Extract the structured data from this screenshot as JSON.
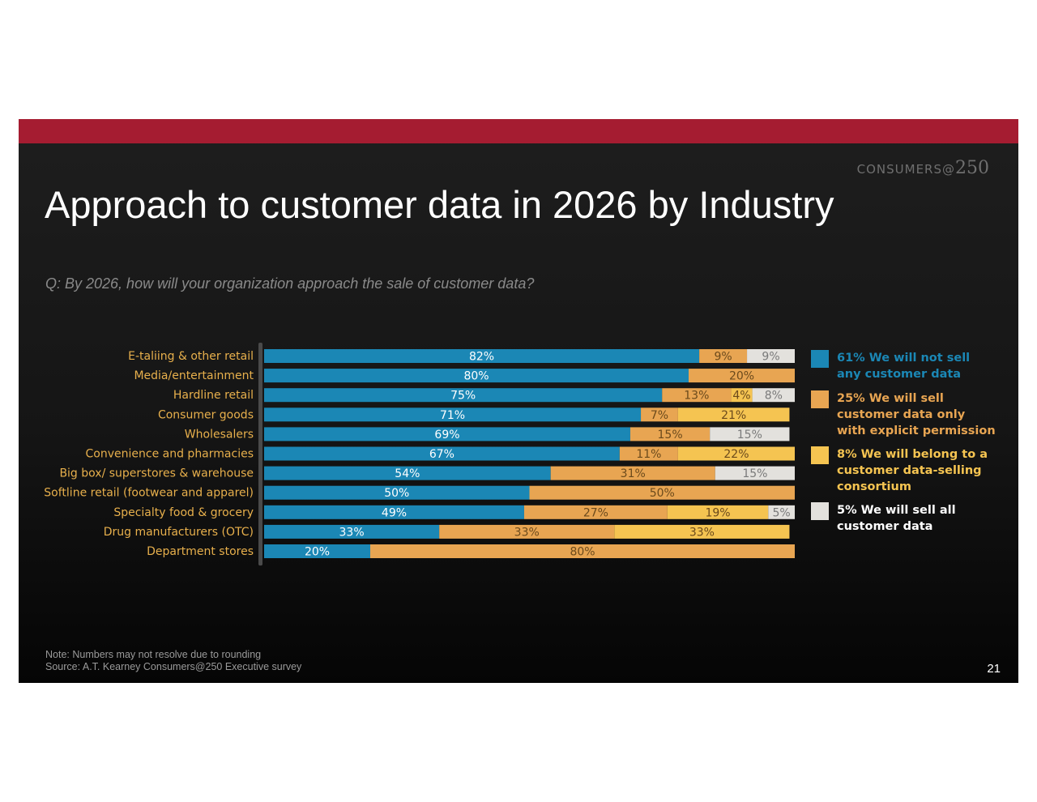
{
  "header": {
    "brand_text": "CONSUMERS@",
    "brand_number": "250"
  },
  "title": "Approach to customer data in 2026 by Industry",
  "question": "Q: By 2026, how will your organization approach the sale of customer data?",
  "colors": {
    "top_bar": "#a51c31",
    "not_sell": "#1b87b5",
    "permission": "#e8a552",
    "consortium": "#f5c451",
    "sell_all": "#e3e1dd",
    "category_label": "#e8b04c"
  },
  "chart_data": {
    "type": "bar",
    "orientation": "horizontal",
    "stacked": true,
    "title": "",
    "xlabel": "",
    "ylabel": "",
    "xlim": [
      0,
      100
    ],
    "categories": [
      "E-taliing & other retail",
      "Media/entertainment",
      "Hardline retail",
      "Consumer goods",
      "Wholesalers",
      "Convenience and pharmacies",
      "Big box/ superstores & warehouse",
      "Softline retail (footwear and apparel)",
      "Specialty food & grocery",
      "Drug manufacturers (OTC)",
      "Department stores"
    ],
    "series": [
      {
        "name": "61% We will not sell any customer data",
        "color": "#1b87b5",
        "label_color": "#ffffff",
        "values": [
          82,
          80,
          75,
          71,
          69,
          67,
          54,
          50,
          49,
          33,
          20
        ]
      },
      {
        "name": "25% We will sell customer data only with explicit permission",
        "color": "#e8a552",
        "label_color": "#6b4a1c",
        "values": [
          9,
          20,
          13,
          7,
          15,
          11,
          31,
          50,
          27,
          33,
          80
        ]
      },
      {
        "name": "8% We will belong to a customer data-selling consortium",
        "color": "#f5c451",
        "label_color": "#6b4a1c",
        "values": [
          0,
          0,
          4,
          21,
          0,
          22,
          0,
          0,
          19,
          33,
          0
        ]
      },
      {
        "name": "5% We will sell all customer data",
        "color": "#e3e1dd",
        "label_color": "#7a7a7a",
        "values": [
          9,
          0,
          8,
          0,
          15,
          0,
          15,
          0,
          5,
          0,
          0
        ]
      }
    ],
    "legend": {
      "position": "right",
      "items": [
        {
          "text": "61% We will not sell\nany customer data",
          "color": "#1b87b5"
        },
        {
          "text": "25% We will sell\ncustomer data only\nwith explicit permission",
          "color": "#e8a552"
        },
        {
          "text": "8% We will belong to a\ncustomer data-selling\nconsortium",
          "color": "#f5c451"
        },
        {
          "text": "5% We will sell all\ncustomer data",
          "color": "#e3e1dd"
        }
      ]
    }
  },
  "footer": {
    "note": "Note: Numbers may not resolve due to rounding",
    "source": "Source: A.T. Kearney Consumers@250 Executive survey",
    "page_number": "21"
  }
}
